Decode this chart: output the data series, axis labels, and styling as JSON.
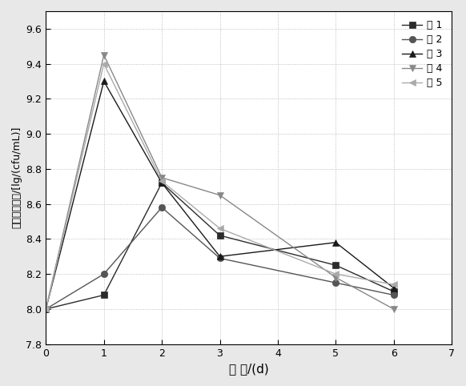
{
  "series": [
    {
      "label": "组 1",
      "x": [
        0,
        1,
        2,
        3,
        5,
        6
      ],
      "y": [
        8.0,
        8.08,
        8.72,
        8.42,
        8.25,
        8.1
      ],
      "marker": "s",
      "color": "#2b2b2b",
      "linestyle": "-"
    },
    {
      "label": "组 2",
      "x": [
        0,
        1,
        2,
        3,
        5,
        6
      ],
      "y": [
        8.0,
        8.2,
        8.58,
        8.29,
        8.15,
        8.08
      ],
      "marker": "o",
      "color": "#555555",
      "linestyle": "-"
    },
    {
      "label": "组 3",
      "x": [
        0,
        1,
        2,
        3,
        5,
        6
      ],
      "y": [
        8.0,
        9.3,
        8.72,
        8.3,
        8.38,
        8.12
      ],
      "marker": "^",
      "color": "#1a1a1a",
      "linestyle": "-"
    },
    {
      "label": "组 4",
      "x": [
        0,
        1,
        2,
        3,
        5,
        6
      ],
      "y": [
        8.0,
        9.45,
        8.75,
        8.65,
        8.18,
        8.0
      ],
      "marker": "v",
      "color": "#888888",
      "linestyle": "-"
    },
    {
      "label": "组 5",
      "x": [
        0,
        1,
        2,
        3,
        5,
        6
      ],
      "y": [
        8.0,
        9.4,
        8.73,
        8.46,
        8.2,
        8.14
      ],
      "marker": "<",
      "color": "#aaaaaa",
      "linestyle": "-"
    }
  ],
  "xlabel": "时 间/(d)",
  "ylabel": "乳酸菌对数值/[lg/(cfu/mL)]",
  "xlim": [
    0,
    7
  ],
  "ylim": [
    7.8,
    9.7
  ],
  "xticks": [
    0,
    1,
    2,
    3,
    4,
    5,
    6,
    7
  ],
  "yticks": [
    7.8,
    8.0,
    8.2,
    8.4,
    8.6,
    8.8,
    9.0,
    9.2,
    9.4,
    9.6
  ],
  "background_color": "#e8e8e8",
  "plot_bg_color": "#ffffff",
  "legend_loc": "upper right",
  "markersize": 6,
  "linewidth": 1.0
}
